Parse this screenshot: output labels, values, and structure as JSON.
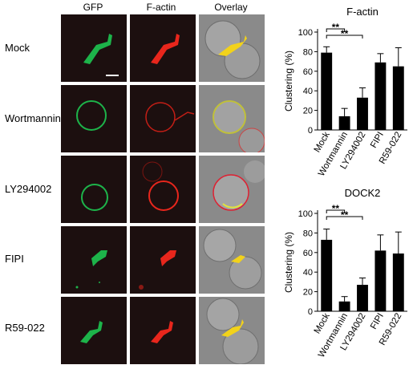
{
  "columns": [
    "GFP",
    "F-actin",
    "Overlay"
  ],
  "rows": [
    {
      "label": "Mock"
    },
    {
      "label": "Wortmannin"
    },
    {
      "label": "LY294002"
    },
    {
      "label": "FIPI"
    },
    {
      "label": "R59-022"
    }
  ],
  "chart_data": [
    {
      "type": "bar",
      "title": "F-actin",
      "ylabel": "Clustering (%)",
      "ylim": [
        0,
        100
      ],
      "yticks": [
        0,
        20,
        40,
        60,
        80,
        100
      ],
      "categories": [
        "Mock",
        "Wortmannin",
        "LY294002",
        "FIPI",
        "R59-022"
      ],
      "values": [
        79,
        14,
        33,
        69,
        65
      ],
      "errors": [
        6,
        8,
        10,
        9,
        19
      ],
      "annotations": [
        {
          "from": "Mock",
          "to": "Wortmannin",
          "text": "**"
        },
        {
          "from": "Mock",
          "to": "LY294002",
          "text": "**"
        }
      ]
    },
    {
      "type": "bar",
      "title": "DOCK2",
      "ylabel": "Clustering (%)",
      "ylim": [
        0,
        100
      ],
      "yticks": [
        0,
        20,
        40,
        60,
        80,
        100
      ],
      "categories": [
        "Mock",
        "Wortmannin",
        "LY294002",
        "FIPI",
        "R59-022"
      ],
      "values": [
        73,
        10,
        27,
        62,
        59
      ],
      "errors": [
        11,
        5,
        7,
        16,
        22
      ],
      "annotations": [
        {
          "from": "Mock",
          "to": "Wortmannin",
          "text": "**"
        },
        {
          "from": "Mock",
          "to": "LY294002",
          "text": "**"
        }
      ]
    }
  ],
  "colors": {
    "gfp": "#1db34a",
    "factin": "#e8261c",
    "merge": "#f2d21a",
    "bar": "#000000"
  }
}
